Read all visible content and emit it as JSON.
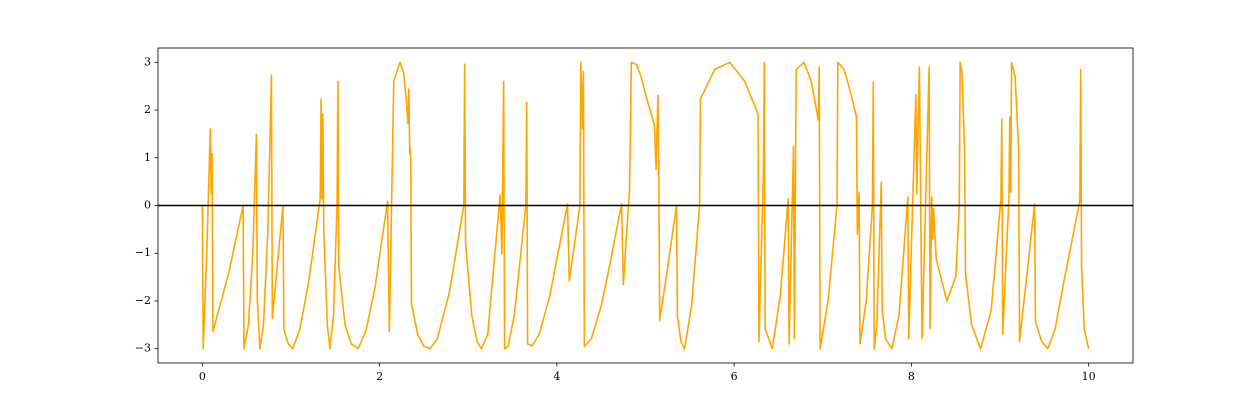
{
  "chart_data": {
    "type": "line",
    "x": [
      0,
      0.01,
      0.05,
      0.09,
      0.1,
      0.11,
      0.12,
      0.3,
      0.46,
      0.47,
      0.52,
      0.57,
      0.61,
      0.62,
      0.65,
      0.69,
      0.74,
      0.78,
      0.79,
      0.91,
      0.92,
      0.97,
      1.02,
      1.1,
      1.2,
      1.33,
      1.34,
      1.35,
      1.36,
      1.37,
      1.41,
      1.44,
      1.48,
      1.52,
      1.53,
      1.54,
      1.61,
      1.68,
      1.76,
      1.85,
      1.95,
      2.09,
      2.11,
      2.16,
      2.23,
      2.27,
      2.3,
      2.32,
      2.33,
      2.34,
      2.35,
      2.36,
      2.43,
      2.5,
      2.57,
      2.65,
      2.79,
      2.95,
      2.96,
      2.97,
      3.04,
      3.1,
      3.15,
      3.22,
      3.36,
      3.38,
      3.4,
      3.41,
      3.45,
      3.52,
      3.65,
      3.66,
      3.67,
      3.72,
      3.8,
      3.92,
      4.12,
      4.14,
      4.26,
      4.27,
      4.29,
      4.3,
      4.31,
      4.39,
      4.5,
      4.57,
      4.73,
      4.75,
      4.82,
      4.84,
      4.9,
      4.95,
      5.02,
      5.1,
      5.12,
      5.14,
      5.15,
      5.16,
      5.25,
      5.35,
      5.36,
      5.4,
      5.44,
      5.52,
      5.61,
      5.62,
      5.78,
      5.95,
      6.12,
      6.27,
      6.28,
      6.33,
      6.34,
      6.35,
      6.43,
      6.52,
      6.61,
      6.62,
      6.67,
      6.68,
      6.7,
      6.79,
      6.87,
      6.95,
      6.96,
      6.97,
      7.06,
      7.16,
      7.17,
      7.24,
      7.31,
      7.38,
      7.39,
      7.41,
      7.42,
      7.49,
      7.56,
      7.57,
      7.58,
      7.61,
      7.66,
      7.67,
      7.71,
      7.78,
      7.86,
      7.96,
      7.97,
      8.05,
      8.06,
      8.09,
      8.12,
      8.2,
      8.21,
      8.23,
      8.24,
      8.25,
      8.28,
      8.4,
      8.5,
      8.54,
      8.55,
      8.57,
      8.6,
      8.61,
      8.68,
      8.78,
      8.9,
      9.01,
      9.02,
      9.03,
      9.1,
      9.11,
      9.12,
      9.13,
      9.17,
      9.21,
      9.22,
      9.3,
      9.39,
      9.4,
      9.47,
      9.54,
      9.62,
      9.72,
      9.9,
      9.91,
      9.92,
      9.95,
      10
    ],
    "series": [
      {
        "color": "#ffa500",
        "values": [
          0,
          -3,
          -1.0,
          1.6,
          0.24,
          1.08,
          -2.64,
          -1.4,
          0,
          -3,
          -2.5,
          -1.0,
          1.49,
          -1.95,
          -3,
          -2.5,
          -0.5,
          2.73,
          -2.37,
          0,
          -2.6,
          -2.9,
          -3,
          -2.6,
          -1.6,
          0.14,
          2.23,
          0.14,
          1.91,
          -0.49,
          -2.5,
          -3,
          -2.3,
          0,
          2.6,
          -1.29,
          -2.5,
          -2.9,
          -3,
          -2.6,
          -1.7,
          0.09,
          -2.64,
          2.6,
          3,
          2.8,
          2.23,
          1.72,
          2.44,
          1.08,
          1.18,
          -2.06,
          -2.7,
          -2.95,
          -3,
          -2.8,
          -1.8,
          0,
          2.96,
          -0.8,
          -2.3,
          -2.85,
          -3,
          -2.7,
          0.22,
          -1.01,
          2.6,
          -3,
          -2.95,
          -2.3,
          0,
          2.16,
          -2.9,
          -2.94,
          -2.7,
          -1.9,
          0.03,
          -1.58,
          0,
          3,
          1.6,
          2.81,
          -2.96,
          -2.79,
          -2.1,
          -1.5,
          0.03,
          -1.66,
          0.34,
          3,
          2.95,
          2.7,
          2.2,
          1.7,
          0.76,
          2.31,
          0.66,
          -2.41,
          -1.3,
          0,
          -2.33,
          -2.85,
          -3,
          -2.1,
          0,
          2.23,
          2.85,
          3,
          2.6,
          1.91,
          -2.85,
          0.66,
          3,
          -2.58,
          -3,
          -1.9,
          0.14,
          -2.9,
          1.24,
          -2.79,
          2.85,
          3,
          2.6,
          1.79,
          2.9,
          -3,
          -2.0,
          0,
          3,
          2.85,
          2.4,
          1.85,
          -0.6,
          0.28,
          -2.9,
          -2.0,
          0,
          2.58,
          -3,
          -2.5,
          0.49,
          -2.21,
          -2.8,
          -3,
          -2.3,
          0.18,
          -2.79,
          2.33,
          0.24,
          2.9,
          -2.79,
          2.9,
          -2.58,
          0.18,
          -0.7,
          -0.07,
          -1.12,
          -2.0,
          -1.5,
          0,
          3,
          2.8,
          1.18,
          -1.43,
          -2.5,
          -3,
          -2.2,
          0.14,
          1.81,
          -2.69,
          0.14,
          1.85,
          0.28,
          3,
          2.7,
          1.18,
          -2.85,
          -1.5,
          0.03,
          -2.43,
          -2.85,
          -3,
          -2.6,
          -1.6,
          0.09,
          2.85,
          -1.29,
          -2.6,
          -3
        ]
      }
    ],
    "hline": 0,
    "hline_color": "#000000",
    "xlim": [
      -0.5,
      10.5
    ],
    "ylim": [
      -3.3,
      3.3
    ],
    "xticks": [
      0,
      2,
      4,
      6,
      8,
      10
    ],
    "yticks": [
      {
        "value": -3,
        "label": "−3"
      },
      {
        "value": -2,
        "label": "−2"
      },
      {
        "value": -1,
        "label": "−1"
      },
      0,
      1,
      2,
      3
    ]
  }
}
